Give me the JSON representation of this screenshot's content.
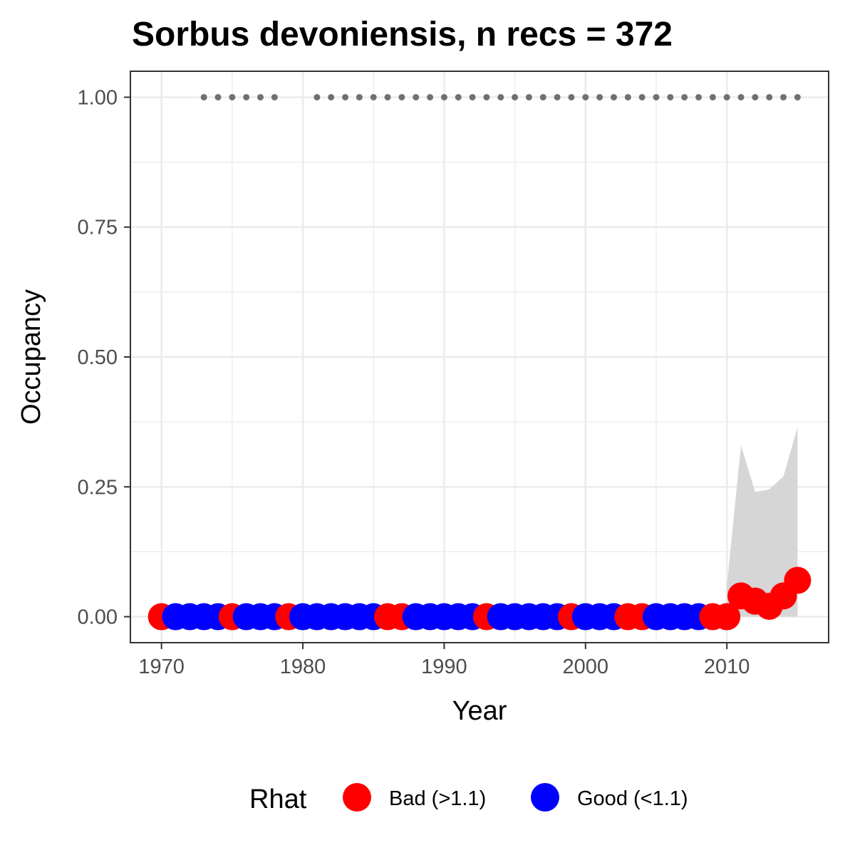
{
  "chart_data": {
    "type": "scatter",
    "title": "Sorbus devoniensis, n recs = 372",
    "xlabel": "Year",
    "ylabel": "Occupancy",
    "xlim": [
      1967.8,
      2017.2
    ],
    "ylim": [
      -0.05,
      1.05
    ],
    "x_ticks": [
      1970,
      1980,
      1990,
      2000,
      2010
    ],
    "y_ticks": [
      0.0,
      0.25,
      0.5,
      0.75,
      1.0
    ],
    "x_tick_labels": [
      "1970",
      "1980",
      "1990",
      "2000",
      "2010"
    ],
    "y_tick_labels": [
      "0.00",
      "0.25",
      "0.50",
      "0.75",
      "1.00"
    ],
    "grid": true,
    "legend": {
      "title": "Rhat",
      "position": "bottom",
      "items": [
        {
          "label": "Bad (>1.1)",
          "color": "#ff0000"
        },
        {
          "label": "Good (<1.1)",
          "color": "#0000ff"
        }
      ]
    },
    "colors": {
      "bad": "#ff0000",
      "good": "#0000ff",
      "ribbon": "#d6d6d6",
      "record_marker": "#707070"
    },
    "points": [
      {
        "year": 1970,
        "occupancy": 0.0,
        "rhat": "bad"
      },
      {
        "year": 1971,
        "occupancy": 0.0,
        "rhat": "good"
      },
      {
        "year": 1972,
        "occupancy": 0.0,
        "rhat": "good"
      },
      {
        "year": 1973,
        "occupancy": 0.0,
        "rhat": "good"
      },
      {
        "year": 1974,
        "occupancy": 0.0,
        "rhat": "good"
      },
      {
        "year": 1975,
        "occupancy": 0.0,
        "rhat": "bad"
      },
      {
        "year": 1976,
        "occupancy": 0.0,
        "rhat": "good"
      },
      {
        "year": 1977,
        "occupancy": 0.0,
        "rhat": "good"
      },
      {
        "year": 1978,
        "occupancy": 0.0,
        "rhat": "good"
      },
      {
        "year": 1979,
        "occupancy": 0.0,
        "rhat": "bad"
      },
      {
        "year": 1980,
        "occupancy": 0.0,
        "rhat": "good"
      },
      {
        "year": 1981,
        "occupancy": 0.0,
        "rhat": "good"
      },
      {
        "year": 1982,
        "occupancy": 0.0,
        "rhat": "good"
      },
      {
        "year": 1983,
        "occupancy": 0.0,
        "rhat": "good"
      },
      {
        "year": 1984,
        "occupancy": 0.0,
        "rhat": "good"
      },
      {
        "year": 1985,
        "occupancy": 0.0,
        "rhat": "good"
      },
      {
        "year": 1986,
        "occupancy": 0.0,
        "rhat": "bad"
      },
      {
        "year": 1987,
        "occupancy": 0.0,
        "rhat": "bad"
      },
      {
        "year": 1988,
        "occupancy": 0.0,
        "rhat": "good"
      },
      {
        "year": 1989,
        "occupancy": 0.0,
        "rhat": "good"
      },
      {
        "year": 1990,
        "occupancy": 0.0,
        "rhat": "good"
      },
      {
        "year": 1991,
        "occupancy": 0.0,
        "rhat": "good"
      },
      {
        "year": 1992,
        "occupancy": 0.0,
        "rhat": "good"
      },
      {
        "year": 1993,
        "occupancy": 0.0,
        "rhat": "bad"
      },
      {
        "year": 1994,
        "occupancy": 0.0,
        "rhat": "good"
      },
      {
        "year": 1995,
        "occupancy": 0.0,
        "rhat": "good"
      },
      {
        "year": 1996,
        "occupancy": 0.0,
        "rhat": "good"
      },
      {
        "year": 1997,
        "occupancy": 0.0,
        "rhat": "good"
      },
      {
        "year": 1998,
        "occupancy": 0.0,
        "rhat": "good"
      },
      {
        "year": 1999,
        "occupancy": 0.0,
        "rhat": "bad"
      },
      {
        "year": 2000,
        "occupancy": 0.0,
        "rhat": "good"
      },
      {
        "year": 2001,
        "occupancy": 0.0,
        "rhat": "good"
      },
      {
        "year": 2002,
        "occupancy": 0.0,
        "rhat": "good"
      },
      {
        "year": 2003,
        "occupancy": 0.0,
        "rhat": "bad"
      },
      {
        "year": 2004,
        "occupancy": 0.0,
        "rhat": "bad"
      },
      {
        "year": 2005,
        "occupancy": 0.0,
        "rhat": "good"
      },
      {
        "year": 2006,
        "occupancy": 0.0,
        "rhat": "good"
      },
      {
        "year": 2007,
        "occupancy": 0.0,
        "rhat": "good"
      },
      {
        "year": 2008,
        "occupancy": 0.0,
        "rhat": "good"
      },
      {
        "year": 2009,
        "occupancy": 0.0,
        "rhat": "bad"
      },
      {
        "year": 2010,
        "occupancy": 0.0,
        "rhat": "bad"
      },
      {
        "year": 2011,
        "occupancy": 0.04,
        "rhat": "bad"
      },
      {
        "year": 2012,
        "occupancy": 0.03,
        "rhat": "bad"
      },
      {
        "year": 2013,
        "occupancy": 0.02,
        "rhat": "bad"
      },
      {
        "year": 2014,
        "occupancy": 0.04,
        "rhat": "bad"
      },
      {
        "year": 2015,
        "occupancy": 0.07,
        "rhat": "bad"
      }
    ],
    "ribbon": [
      {
        "year": 2010,
        "lower": 0.0,
        "upper": 0.06
      },
      {
        "year": 2011,
        "lower": 0.0,
        "upper": 0.33
      },
      {
        "year": 2012,
        "lower": 0.0,
        "upper": 0.24
      },
      {
        "year": 2013,
        "lower": 0.0,
        "upper": 0.245
      },
      {
        "year": 2014,
        "lower": 0.0,
        "upper": 0.27
      },
      {
        "year": 2015,
        "lower": 0.0,
        "upper": 0.365
      }
    ],
    "record_years": [
      1973,
      1974,
      1975,
      1976,
      1977,
      1978,
      1981,
      1982,
      1983,
      1984,
      1985,
      1986,
      1987,
      1988,
      1989,
      1990,
      1991,
      1992,
      1993,
      1994,
      1995,
      1996,
      1997,
      1998,
      1999,
      2000,
      2001,
      2002,
      2003,
      2004,
      2005,
      2006,
      2007,
      2008,
      2009,
      2010,
      2011,
      2012,
      2013,
      2014,
      2015
    ],
    "record_marker_value": 1.0
  }
}
